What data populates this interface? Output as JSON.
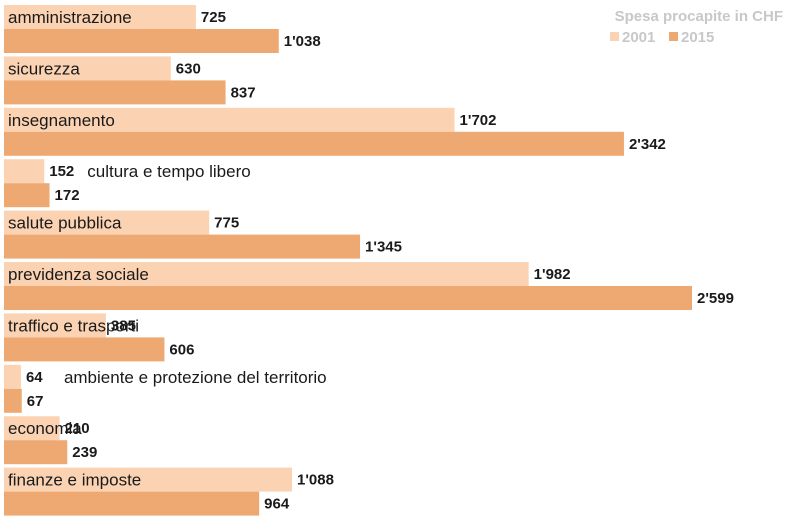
{
  "chart_data": {
    "type": "bar",
    "orientation": "horizontal",
    "legend_title": "Spesa procapite in CHF",
    "legend_placement": "top-right",
    "categories": [
      "amministrazione",
      "sicurezza",
      "insegnamento",
      "cultura e tempo libero",
      "salute pubblica",
      "previdenza sociale",
      "traffico e trasporti",
      "ambiente e protezione del territorio",
      "economia",
      "finanze e imposte"
    ],
    "series": [
      {
        "name": "2001",
        "color": "#fbd3b3",
        "values": [
          725,
          630,
          1702,
          152,
          775,
          1982,
          385,
          64,
          210,
          1088
        ],
        "labels": [
          "725",
          "630",
          "1'702",
          "152",
          "775",
          "1'982",
          "385",
          "64",
          "210",
          "1'088"
        ]
      },
      {
        "name": "2015",
        "color": "#eea972",
        "values": [
          1038,
          837,
          2342,
          172,
          1345,
          2599,
          606,
          67,
          239,
          964
        ],
        "labels": [
          "1'038",
          "837",
          "2'342",
          "172",
          "1'345",
          "2'599",
          "606",
          "67",
          "239",
          "964"
        ]
      }
    ],
    "xlim": [
      0,
      2599
    ],
    "grid": false
  }
}
